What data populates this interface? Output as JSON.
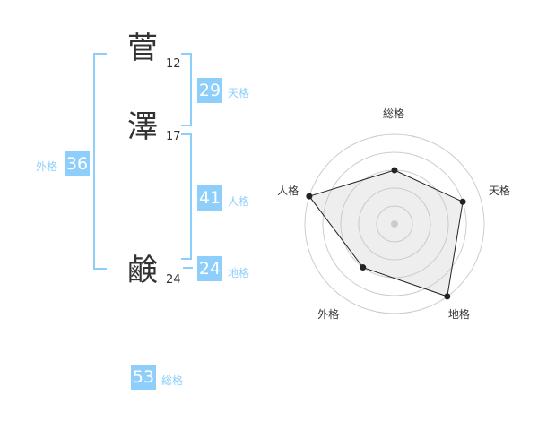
{
  "name": {
    "chars": [
      {
        "char": "菅",
        "strokes": "12"
      },
      {
        "char": "澤",
        "strokes": "17"
      },
      {
        "char": "鹸",
        "strokes": "24"
      }
    ]
  },
  "fortunes": {
    "tenkaku": {
      "label": "天格",
      "value": "29"
    },
    "jinkaku": {
      "label": "人格",
      "value": "41"
    },
    "chikaku": {
      "label": "地格",
      "value": "24"
    },
    "gaikaku": {
      "label": "外格",
      "value": "36"
    },
    "soukaku": {
      "label": "総格",
      "value": "53"
    }
  },
  "accent_color": "#8dcffa",
  "chart_data": {
    "type": "radar",
    "axes": [
      "総格",
      "天格",
      "地格",
      "外格",
      "人格"
    ],
    "values": [
      3,
      4,
      5,
      3,
      5
    ],
    "range": [
      0,
      5
    ],
    "grid": "concentric circles"
  }
}
